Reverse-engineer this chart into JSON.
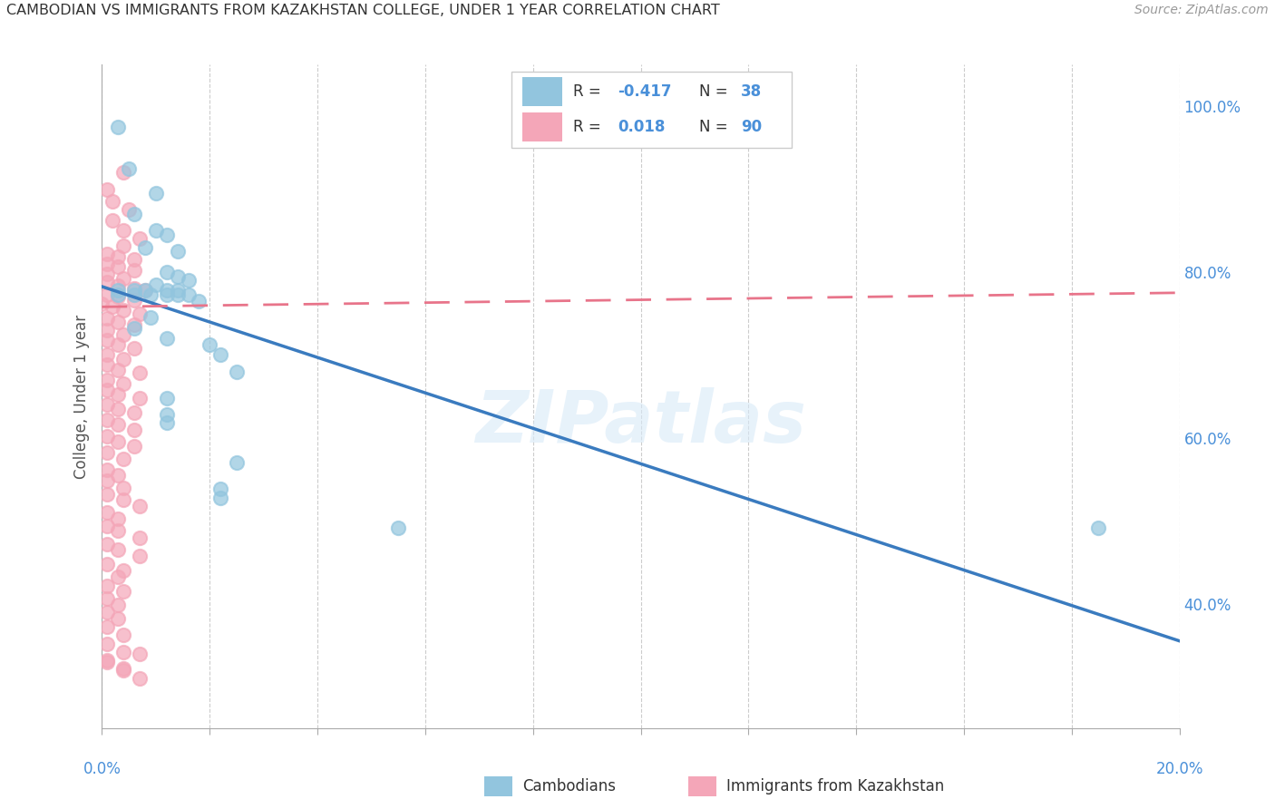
{
  "title": "CAMBODIAN VS IMMIGRANTS FROM KAZAKHSTAN COLLEGE, UNDER 1 YEAR CORRELATION CHART",
  "source": "Source: ZipAtlas.com",
  "ylabel": "College, Under 1 year",
  "right_ytick_values": [
    0.4,
    0.6,
    0.8,
    1.0
  ],
  "right_ytick_labels": [
    "40.0%",
    "60.0%",
    "80.0%",
    "100.0%"
  ],
  "legend_blue_r": "-0.417",
  "legend_blue_n": "38",
  "legend_pink_r": "0.018",
  "legend_pink_n": "90",
  "watermark": "ZIPatlas",
  "blue_color": "#92c5de",
  "pink_color": "#f4a6b8",
  "blue_line_color": "#3a7bbf",
  "pink_line_color": "#e8748a",
  "xmin": 0.0,
  "xmax": 0.2,
  "ymin": 0.25,
  "ymax": 1.05,
  "blue_points": [
    [
      0.003,
      0.975
    ],
    [
      0.005,
      0.925
    ],
    [
      0.01,
      0.895
    ],
    [
      0.006,
      0.87
    ],
    [
      0.01,
      0.85
    ],
    [
      0.012,
      0.845
    ],
    [
      0.008,
      0.83
    ],
    [
      0.014,
      0.825
    ],
    [
      0.012,
      0.8
    ],
    [
      0.014,
      0.795
    ],
    [
      0.016,
      0.79
    ],
    [
      0.01,
      0.785
    ],
    [
      0.003,
      0.778
    ],
    [
      0.006,
      0.778
    ],
    [
      0.008,
      0.778
    ],
    [
      0.012,
      0.778
    ],
    [
      0.014,
      0.778
    ],
    [
      0.003,
      0.773
    ],
    [
      0.006,
      0.773
    ],
    [
      0.009,
      0.773
    ],
    [
      0.012,
      0.773
    ],
    [
      0.014,
      0.773
    ],
    [
      0.016,
      0.773
    ],
    [
      0.018,
      0.765
    ],
    [
      0.009,
      0.745
    ],
    [
      0.006,
      0.732
    ],
    [
      0.012,
      0.72
    ],
    [
      0.02,
      0.712
    ],
    [
      0.022,
      0.7
    ],
    [
      0.025,
      0.68
    ],
    [
      0.012,
      0.648
    ],
    [
      0.012,
      0.628
    ],
    [
      0.012,
      0.618
    ],
    [
      0.025,
      0.57
    ],
    [
      0.022,
      0.538
    ],
    [
      0.022,
      0.528
    ],
    [
      0.055,
      0.492
    ],
    [
      0.185,
      0.492
    ]
  ],
  "pink_points": [
    [
      0.004,
      0.92
    ],
    [
      0.001,
      0.9
    ],
    [
      0.002,
      0.885
    ],
    [
      0.005,
      0.875
    ],
    [
      0.002,
      0.862
    ],
    [
      0.004,
      0.85
    ],
    [
      0.007,
      0.84
    ],
    [
      0.004,
      0.832
    ],
    [
      0.001,
      0.822
    ],
    [
      0.003,
      0.818
    ],
    [
      0.006,
      0.815
    ],
    [
      0.001,
      0.81
    ],
    [
      0.003,
      0.806
    ],
    [
      0.006,
      0.802
    ],
    [
      0.001,
      0.798
    ],
    [
      0.004,
      0.792
    ],
    [
      0.001,
      0.788
    ],
    [
      0.003,
      0.784
    ],
    [
      0.006,
      0.78
    ],
    [
      0.008,
      0.778
    ],
    [
      0.001,
      0.773
    ],
    [
      0.003,
      0.77
    ],
    [
      0.006,
      0.766
    ],
    [
      0.0,
      0.762
    ],
    [
      0.002,
      0.758
    ],
    [
      0.004,
      0.754
    ],
    [
      0.007,
      0.75
    ],
    [
      0.001,
      0.744
    ],
    [
      0.003,
      0.74
    ],
    [
      0.006,
      0.736
    ],
    [
      0.001,
      0.73
    ],
    [
      0.004,
      0.725
    ],
    [
      0.001,
      0.718
    ],
    [
      0.003,
      0.712
    ],
    [
      0.006,
      0.708
    ],
    [
      0.001,
      0.7
    ],
    [
      0.004,
      0.695
    ],
    [
      0.001,
      0.688
    ],
    [
      0.003,
      0.682
    ],
    [
      0.007,
      0.678
    ],
    [
      0.001,
      0.67
    ],
    [
      0.004,
      0.665
    ],
    [
      0.001,
      0.658
    ],
    [
      0.003,
      0.652
    ],
    [
      0.007,
      0.648
    ],
    [
      0.001,
      0.64
    ],
    [
      0.003,
      0.635
    ],
    [
      0.006,
      0.63
    ],
    [
      0.001,
      0.622
    ],
    [
      0.003,
      0.616
    ],
    [
      0.006,
      0.61
    ],
    [
      0.001,
      0.602
    ],
    [
      0.003,
      0.595
    ],
    [
      0.006,
      0.59
    ],
    [
      0.001,
      0.582
    ],
    [
      0.004,
      0.575
    ],
    [
      0.001,
      0.562
    ],
    [
      0.003,
      0.555
    ],
    [
      0.001,
      0.548
    ],
    [
      0.004,
      0.54
    ],
    [
      0.001,
      0.532
    ],
    [
      0.004,
      0.525
    ],
    [
      0.007,
      0.518
    ],
    [
      0.001,
      0.51
    ],
    [
      0.003,
      0.502
    ],
    [
      0.001,
      0.494
    ],
    [
      0.003,
      0.488
    ],
    [
      0.007,
      0.48
    ],
    [
      0.001,
      0.472
    ],
    [
      0.003,
      0.465
    ],
    [
      0.007,
      0.458
    ],
    [
      0.001,
      0.448
    ],
    [
      0.004,
      0.44
    ],
    [
      0.003,
      0.432
    ],
    [
      0.001,
      0.422
    ],
    [
      0.004,
      0.415
    ],
    [
      0.001,
      0.406
    ],
    [
      0.003,
      0.398
    ],
    [
      0.001,
      0.39
    ],
    [
      0.003,
      0.382
    ],
    [
      0.001,
      0.372
    ],
    [
      0.004,
      0.362
    ],
    [
      0.001,
      0.352
    ],
    [
      0.004,
      0.342
    ],
    [
      0.001,
      0.332
    ],
    [
      0.004,
      0.322
    ],
    [
      0.007,
      0.34
    ],
    [
      0.001,
      0.33
    ],
    [
      0.004,
      0.32
    ],
    [
      0.007,
      0.31
    ]
  ]
}
